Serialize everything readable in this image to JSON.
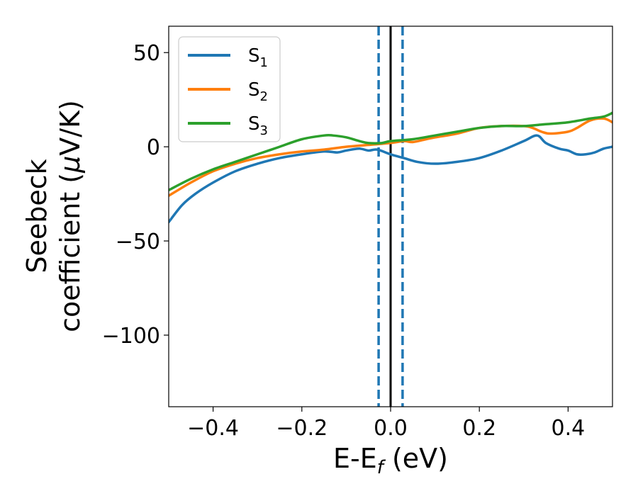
{
  "chart_data": {
    "type": "line",
    "title": "",
    "xlabel": {
      "main": "E-E",
      "sub": "f",
      "suffix": " (eV)"
    },
    "ylabel": {
      "line1": "Seebeck",
      "line2_prefix": "coefficient  (",
      "mu": "μ",
      "line2_suffix": "V/K)"
    },
    "xlim": [
      -0.5,
      0.5
    ],
    "ylim": [
      -138,
      64
    ],
    "xticks": [
      -0.4,
      -0.2,
      0.0,
      0.2,
      0.4
    ],
    "xtick_labels": [
      "−0.4",
      "−0.2",
      "0.0",
      "0.2",
      "0.4"
    ],
    "yticks": [
      50,
      0,
      -50,
      -100
    ],
    "ytick_labels": [
      "50",
      "0",
      "−50",
      "−100"
    ],
    "legend_position": "upper-left",
    "series": [
      {
        "name": "S",
        "sub": "1",
        "color": "#1f77b4",
        "x": [
          -0.5,
          -0.47,
          -0.44,
          -0.4,
          -0.35,
          -0.3,
          -0.25,
          -0.2,
          -0.15,
          -0.12,
          -0.1,
          -0.07,
          -0.05,
          -0.03,
          0.0,
          0.03,
          0.06,
          0.1,
          0.15,
          0.2,
          0.25,
          0.3,
          0.33,
          0.35,
          0.38,
          0.4,
          0.42,
          0.44,
          0.46,
          0.48,
          0.5
        ],
        "y": [
          -40,
          -31,
          -25,
          -19,
          -13,
          -9,
          -6,
          -4,
          -2.5,
          -3,
          -2,
          -1,
          -2,
          -1.5,
          -4,
          -6,
          -8,
          -9,
          -8,
          -6,
          -2,
          3,
          6,
          2,
          -1,
          -2,
          -4,
          -4,
          -3,
          -1,
          0
        ]
      },
      {
        "name": "S",
        "sub": "2",
        "color": "#ff7f0e",
        "x": [
          -0.5,
          -0.45,
          -0.4,
          -0.35,
          -0.3,
          -0.25,
          -0.2,
          -0.15,
          -0.1,
          -0.05,
          0.0,
          0.03,
          0.05,
          0.08,
          0.1,
          0.15,
          0.2,
          0.25,
          0.3,
          0.32,
          0.34,
          0.36,
          0.4,
          0.42,
          0.45,
          0.48,
          0.5
        ],
        "y": [
          -26,
          -19,
          -13,
          -9,
          -6,
          -4,
          -2.5,
          -1.5,
          0,
          1,
          2,
          3,
          2.5,
          4,
          5,
          7,
          10,
          11,
          11,
          10,
          8,
          7,
          8,
          10,
          14,
          15,
          13
        ]
      },
      {
        "name": "S",
        "sub": "3",
        "color": "#2ca02c",
        "x": [
          -0.5,
          -0.45,
          -0.4,
          -0.35,
          -0.3,
          -0.25,
          -0.2,
          -0.15,
          -0.13,
          -0.1,
          -0.07,
          -0.05,
          -0.02,
          0.0,
          0.05,
          0.1,
          0.15,
          0.2,
          0.25,
          0.3,
          0.35,
          0.4,
          0.45,
          0.48,
          0.5
        ],
        "y": [
          -23,
          -17,
          -12,
          -8,
          -4,
          0,
          4,
          6,
          6,
          5,
          3,
          2,
          2,
          3,
          4,
          6,
          8,
          10,
          11,
          11,
          12,
          13,
          15,
          16,
          18
        ]
      }
    ],
    "vertical_lines": [
      {
        "x": 0.0,
        "color": "#000000",
        "style": "solid"
      },
      {
        "x": -0.027,
        "color": "#1f77b4",
        "style": "dashed"
      },
      {
        "x": 0.027,
        "color": "#1f77b4",
        "style": "dashed"
      }
    ]
  }
}
